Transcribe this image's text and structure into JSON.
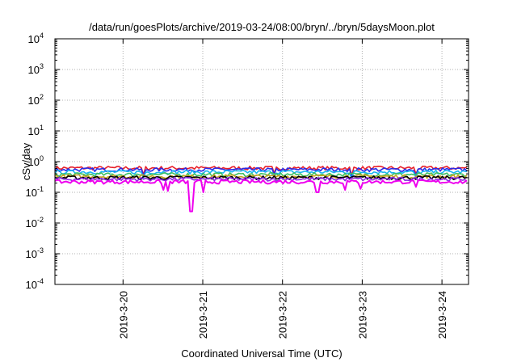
{
  "chart_data": {
    "type": "line",
    "title": "/data/run/goesPlots/archive/2019-03-24/08:00/bryn/../bryn/5daysMoon.plot",
    "xlabel": "Coordinated Universal Time (UTC)",
    "ylabel": "cSv/day",
    "yscale": "log",
    "ylim": [
      0.0001,
      10000
    ],
    "xlim": [
      "2019-03-19T03:30",
      "2019-03-24T08:00"
    ],
    "grid": true,
    "legend": "none",
    "y_ticks": [
      {
        "base": "10",
        "exp": "4",
        "value": 10000
      },
      {
        "base": "10",
        "exp": "3",
        "value": 1000
      },
      {
        "base": "10",
        "exp": "2",
        "value": 100
      },
      {
        "base": "10",
        "exp": "1",
        "value": 10
      },
      {
        "base": "10",
        "exp": "0",
        "value": 1
      },
      {
        "base": "10",
        "exp": "-1",
        "value": 0.1
      },
      {
        "base": "10",
        "exp": "-2",
        "value": 0.01
      },
      {
        "base": "10",
        "exp": "-3",
        "value": 0.001
      },
      {
        "base": "10",
        "exp": "-4",
        "value": 0.0001
      }
    ],
    "x_ticks": [
      {
        "label": "2019-3-20",
        "value": "2019-03-20"
      },
      {
        "label": "2019-3-21",
        "value": "2019-03-21"
      },
      {
        "label": "2019-3-22",
        "value": "2019-03-22"
      },
      {
        "label": "2019-3-23",
        "value": "2019-03-23"
      },
      {
        "label": "2019-3-24",
        "value": "2019-03-24"
      }
    ],
    "series": [
      {
        "color": "#e8202a",
        "level": 0.62,
        "dips": [
          {
            "t": "2019-03-20T06:00",
            "v": 0.38
          },
          {
            "t": "2019-03-21T21:30",
            "v": 0.42
          },
          {
            "t": "2019-03-22T21:00",
            "v": 0.36
          },
          {
            "t": "2019-03-23T16:00",
            "v": 0.4
          }
        ]
      },
      {
        "color": "#2a2ae8",
        "level": 0.55,
        "dips": [
          {
            "t": "2019-03-20T06:00",
            "v": 0.34
          },
          {
            "t": "2019-03-21T21:30",
            "v": 0.38
          },
          {
            "t": "2019-03-22T21:00",
            "v": 0.32
          },
          {
            "t": "2019-03-23T16:00",
            "v": 0.36
          }
        ]
      },
      {
        "color": "#18b4f0",
        "level": 0.46,
        "dips": [
          {
            "t": "2019-03-20T06:00",
            "v": 0.3
          },
          {
            "t": "2019-03-21T21:30",
            "v": 0.32
          },
          {
            "t": "2019-03-22T21:00",
            "v": 0.28
          },
          {
            "t": "2019-03-23T16:00",
            "v": 0.3
          }
        ]
      },
      {
        "color": "#3cc060",
        "level": 0.38,
        "dips": [
          {
            "t": "2019-03-20T20:00",
            "v": 0.31
          },
          {
            "t": "2019-03-23T00:00",
            "v": 0.31
          }
        ]
      },
      {
        "color": "#c8a020",
        "level": 0.33,
        "dips": []
      },
      {
        "color": "#000000",
        "level": 0.3,
        "dips": []
      },
      {
        "color": "#8a2be2",
        "level": 0.27,
        "dips": []
      },
      {
        "color": "#ee00ee",
        "level": 0.22,
        "dips": [
          {
            "t": "2019-03-20T12:00",
            "v": 0.12
          },
          {
            "t": "2019-03-20T13:30",
            "v": 0.11
          },
          {
            "t": "2019-03-20T20:30",
            "v": 0.024
          },
          {
            "t": "2019-03-21T00:00",
            "v": 0.1
          },
          {
            "t": "2019-03-22T10:30",
            "v": 0.1
          },
          {
            "t": "2019-03-22T19:00",
            "v": 0.12
          },
          {
            "t": "2019-03-22T23:30",
            "v": 0.13
          },
          {
            "t": "2019-03-23T16:00",
            "v": 0.15
          }
        ]
      }
    ]
  }
}
